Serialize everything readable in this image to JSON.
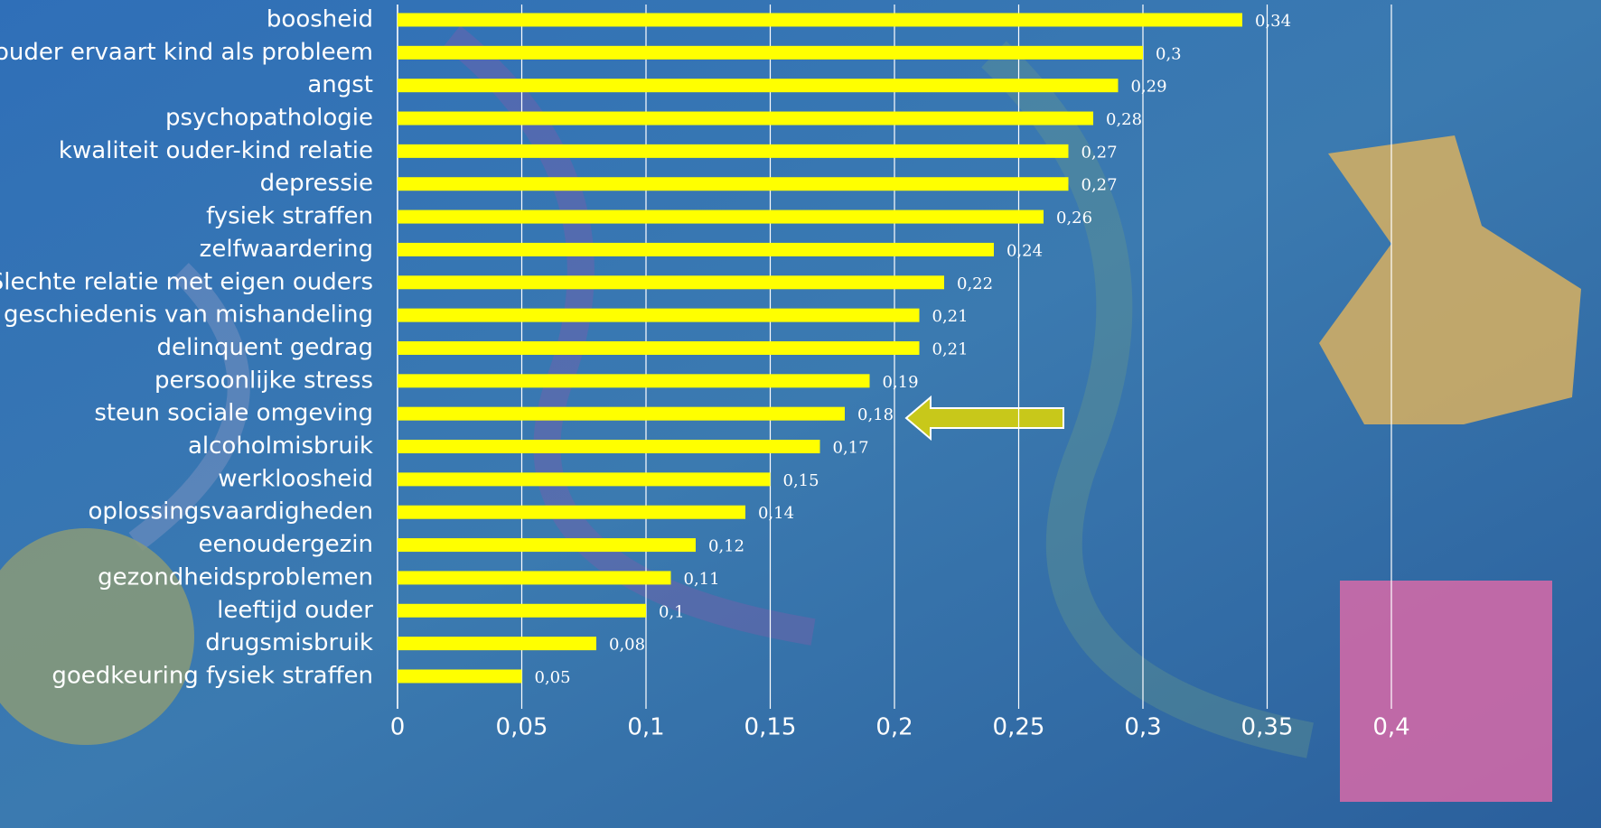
{
  "chart_data": {
    "type": "bar",
    "orientation": "horizontal",
    "categories": [
      "boosheid",
      "ouder ervaart kind als probleem",
      "angst",
      "psychopathologie",
      "kwaliteit ouder-kind relatie",
      "depressie",
      "fysiek straffen",
      "zelfwaardering",
      "Slechte relatie met eigen ouders",
      "geschiedenis van mishandeling",
      "delinquent gedrag",
      "persoonlijke stress",
      "steun sociale omgeving",
      "alcoholmisbruik",
      "werkloosheid",
      "oplossingsvaardigheden",
      "eenoudergezin",
      "gezondheidsproblemen",
      "leeftijd ouder",
      "drugsmisbruik",
      "goedkeuring fysiek straffen"
    ],
    "values": [
      0.34,
      0.3,
      0.29,
      0.28,
      0.27,
      0.27,
      0.26,
      0.24,
      0.22,
      0.21,
      0.21,
      0.19,
      0.18,
      0.17,
      0.15,
      0.14,
      0.12,
      0.11,
      0.1,
      0.08,
      0.05
    ],
    "value_labels": [
      "0,34",
      "0,3",
      "0,29",
      "0,28",
      "0,27",
      "0,27",
      "0,26",
      "0,24",
      "0,22",
      "0,21",
      "0,21",
      "0,19",
      "0,18",
      "0,17",
      "0,15",
      "0,14",
      "0,12",
      "0,11",
      "0,1",
      "0,08",
      "0,05"
    ],
    "color": "#ffff00",
    "xlim": [
      0,
      0.4
    ],
    "xticks": [
      0,
      {
        "value": 0.05,
        "label": "0,05"
      },
      {
        "value": 0.1,
        "label": "0,1"
      },
      {
        "value": 0.15,
        "label": "0,15"
      },
      {
        "value": 0.2,
        "label": "0,2"
      },
      {
        "value": 0.25,
        "label": "0,25"
      },
      {
        "value": 0.3,
        "label": "0,3"
      },
      {
        "value": 0.35,
        "label": "0,35"
      },
      {
        "value": 0.4,
        "label": "0,4"
      }
    ],
    "grid": true
  }
}
